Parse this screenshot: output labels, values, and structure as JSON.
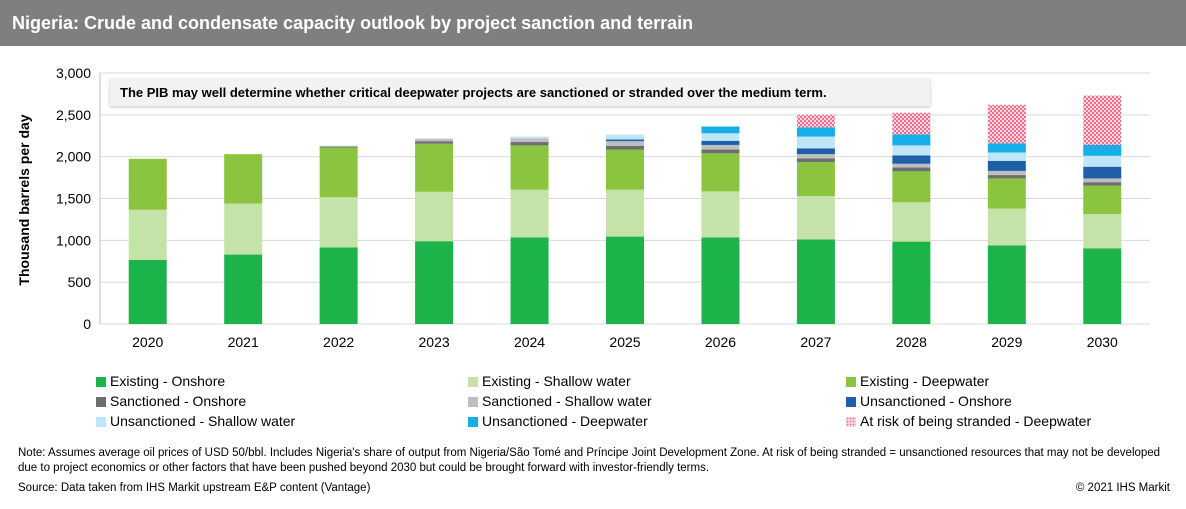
{
  "title": "Nigeria: Crude and condensate capacity outlook by project sanction and terrain",
  "annotation": "The PIB may well determine whether critical deepwater projects are sanctioned or stranded over the medium term.",
  "note": "Note: Assumes average oil prices of USD 50/bbl. Includes Nigeria's share of output from Nigeria/São Tomé and Príncipe Joint Development Zone. At risk of being stranded = unsanctioned resources that may not be developed due to project economics or other factors that have been pushed beyond 2030 but could be brought forward with investor-friendly terms.",
  "source": "Source: Data taken from IHS Markit upstream E&P content (Vantage)",
  "copyright": "© 2021 IHS Markit",
  "chart_data": {
    "type": "bar",
    "stacked": true,
    "ylabel": "Thousand barrels per day",
    "ylim": [
      0,
      3000
    ],
    "yticks": [
      0,
      500,
      1000,
      1500,
      2000,
      2500,
      3000
    ],
    "ytick_labels": [
      "0",
      "500",
      "1,000",
      "1,500",
      "2,000",
      "2,500",
      "3,000"
    ],
    "grid": true,
    "legend_position": "bottom",
    "categories": [
      "2020",
      "2021",
      "2022",
      "2023",
      "2024",
      "2025",
      "2026",
      "2027",
      "2028",
      "2029",
      "2030"
    ],
    "series": [
      {
        "name": "Existing - Onshore",
        "color": "#1db34b",
        "values": [
          765,
          830,
          915,
          990,
          1035,
          1045,
          1035,
          1010,
          985,
          940,
          905
        ]
      },
      {
        "name": "Existing - Shallow water",
        "color": "#c5e2a8",
        "values": [
          600,
          610,
          600,
          590,
          570,
          560,
          550,
          520,
          470,
          440,
          410
        ]
      },
      {
        "name": "Existing - Deepwater",
        "color": "#8bc53f",
        "values": [
          610,
          590,
          595,
          575,
          530,
          480,
          455,
          405,
          370,
          360,
          340
        ]
      },
      {
        "name": "Sanctioned - Onshore",
        "color": "#6d6e70",
        "values": [
          0,
          0,
          10,
          30,
          40,
          45,
          45,
          45,
          45,
          40,
          40
        ]
      },
      {
        "name": "Sanctioned - Shallow water",
        "color": "#bcbec0",
        "values": [
          0,
          0,
          10,
          30,
          45,
          55,
          55,
          50,
          45,
          50,
          45
        ]
      },
      {
        "name": "Unsanctioned - Onshore",
        "color": "#1f5fa8",
        "values": [
          0,
          0,
          0,
          0,
          0,
          20,
          50,
          70,
          100,
          120,
          140
        ]
      },
      {
        "name": "Unsanctioned - Shallow water",
        "color": "#bfe6f7",
        "values": [
          0,
          0,
          0,
          0,
          20,
          60,
          90,
          140,
          120,
          100,
          130
        ]
      },
      {
        "name": "Unsanctioned - Deepwater",
        "color": "#16aee8",
        "values": [
          0,
          0,
          0,
          0,
          0,
          0,
          80,
          110,
          130,
          110,
          130
        ]
      },
      {
        "name": "At risk of being stranded - Deepwater",
        "color": "#f4a0b3",
        "pattern": true,
        "values": [
          0,
          0,
          0,
          0,
          0,
          0,
          0,
          150,
          260,
          460,
          590
        ]
      }
    ]
  }
}
